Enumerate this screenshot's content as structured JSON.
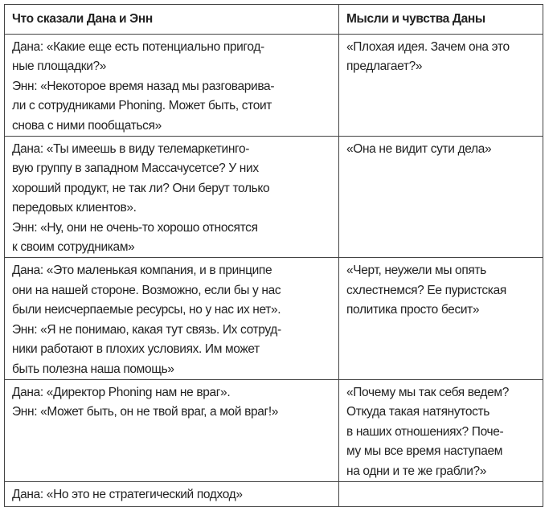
{
  "table": {
    "headers": [
      "Что сказали Дана и Энн",
      "Мысли и чувства Даны"
    ],
    "rows": [
      {
        "said": [
          "Дана: «Какие еще есть потенциально пригод-",
          "ные площадки?»",
          "Энн: «Некоторое время назад мы разговарива-",
          "ли с сотрудниками Phoning. Может быть, стоит",
          "снова с ними пообщаться»"
        ],
        "thought": [
          "«Плохая идея. Зачем она это",
          "предлагает?»"
        ]
      },
      {
        "said": [
          "Дана: «Ты имеешь в виду телемаркетинго-",
          "вую группу в западном Массачусетсе? У них",
          "хороший продукт, не так ли? Они берут только",
          "передовых клиентов».",
          "Энн: «Ну, они не очень-то хорошо относятся",
          "к своим сотрудникам»"
        ],
        "thought": [
          "«Она не видит сути дела»"
        ]
      },
      {
        "said": [
          "Дана: «Это маленькая компания, и в принципе",
          "они на нашей стороне. Возможно, если бы у нас",
          "были неисчерпаемые ресурсы, но у нас их нет».",
          "Энн: «Я не понимаю, какая тут связь. Их сотруд-",
          "ники работают в плохих условиях. Им может",
          "быть полезна наша помощь»"
        ],
        "thought": [
          "«Черт, неужели мы опять",
          "схлестнемся? Ее пуристская",
          "политика просто бесит»"
        ]
      },
      {
        "said": [
          "Дана: «Директор Phoning нам не враг».",
          "Энн: «Может быть, он не твой враг, а мой враг!»"
        ],
        "thought": [
          "«Почему мы так себя ведем?",
          "Откуда такая натянутость",
          "в наших отношениях? Поче-",
          "му мы все время наступаем",
          "на одни и те же грабли?»"
        ]
      },
      {
        "said": [
          "Дана: «Но это не стратегический подход»"
        ],
        "thought": []
      }
    ]
  }
}
